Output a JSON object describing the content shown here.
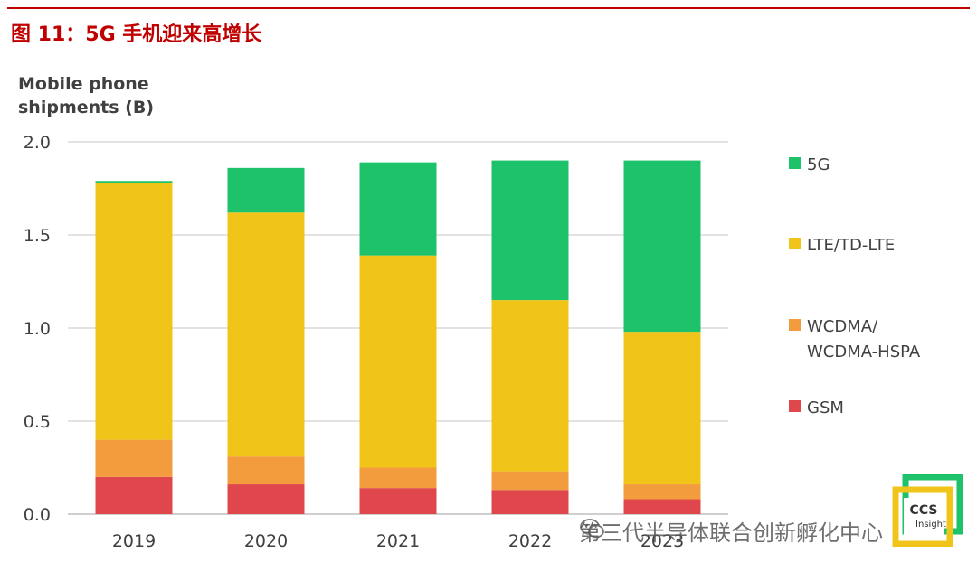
{
  "figure": {
    "title": "图 11：5G 手机迎来高增长",
    "y_axis_title_lines": [
      "Mobile phone",
      "shipments (B)"
    ]
  },
  "chart_data": {
    "type": "bar",
    "stacked": true,
    "categories": [
      "2019",
      "2020",
      "2021",
      "2022",
      "2023"
    ],
    "ylim": [
      0,
      2.0
    ],
    "yticks": [
      "0.0",
      "0.5",
      "1.0",
      "1.5",
      "2.0"
    ],
    "ylabel": "Mobile phone shipments (B)",
    "grid": true,
    "legend_position": "right",
    "series": [
      {
        "name": "GSM",
        "color": "#e0474c",
        "values": [
          0.2,
          0.16,
          0.14,
          0.13,
          0.08
        ]
      },
      {
        "name": "WCDMA/ WCDMA-HSPA",
        "color": "#f39c3d",
        "values": [
          0.2,
          0.15,
          0.11,
          0.1,
          0.08
        ]
      },
      {
        "name": "LTE/TD-LTE",
        "color": "#f0c419",
        "values": [
          1.38,
          1.31,
          1.14,
          0.92,
          0.82
        ]
      },
      {
        "name": "5G",
        "color": "#1ec26a",
        "values": [
          0.01,
          0.24,
          0.5,
          0.75,
          0.92
        ]
      }
    ],
    "legend": [
      {
        "lines": [
          "5G"
        ],
        "color": "#1ec26a"
      },
      {
        "lines": [
          "LTE/TD-LTE"
        ],
        "color": "#f0c419"
      },
      {
        "lines": [
          "WCDMA/",
          "WCDMA-HSPA"
        ],
        "color": "#f39c3d"
      },
      {
        "lines": [
          "GSM"
        ],
        "color": "#e0474c"
      }
    ]
  },
  "watermark": {
    "text": "第三代半导体联合创新孵化中心",
    "icon": "wechat-icon"
  },
  "logo": {
    "text_main": "CCS",
    "text_sub": "Insight",
    "colors": [
      "#1ec26a",
      "#f0c419"
    ]
  }
}
